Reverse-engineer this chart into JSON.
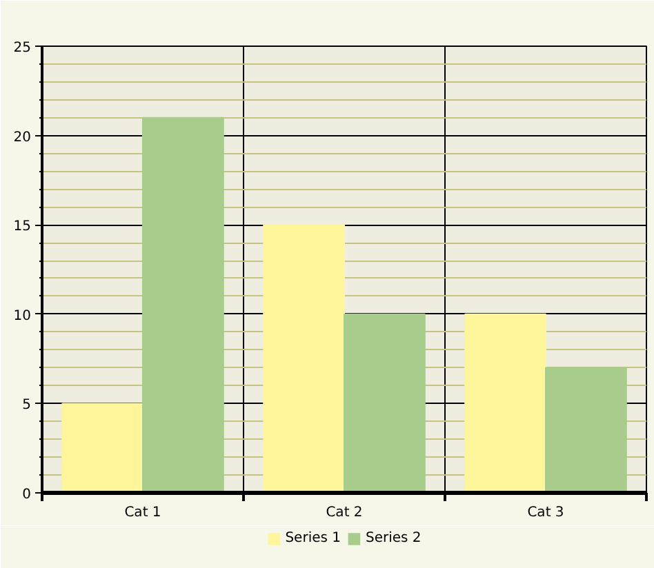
{
  "chart_data": {
    "type": "bar",
    "categories": [
      "Cat 1",
      "Cat 2",
      "Cat 3"
    ],
    "series": [
      {
        "name": "Series 1",
        "color": "#fff69b",
        "values": [
          5,
          15,
          10
        ]
      },
      {
        "name": "Series 2",
        "color": "#a8cc8c",
        "values": [
          21,
          10,
          7
        ]
      }
    ],
    "ylim": [
      0,
      25
    ],
    "yticks": [
      0,
      {
        "value": 1,
        "label": null
      },
      {
        "value": 2,
        "label": null
      },
      {
        "value": 3,
        "label": null
      },
      {
        "value": 4,
        "label": null
      },
      5,
      {
        "value": 6,
        "label": null
      },
      {
        "value": 7,
        "label": null
      },
      {
        "value": 8,
        "label": null
      },
      {
        "value": 9,
        "label": null
      },
      10,
      {
        "value": 11,
        "label": null
      },
      {
        "value": 12,
        "label": null
      },
      {
        "value": 13,
        "label": null
      },
      {
        "value": 14,
        "label": null
      },
      15,
      {
        "value": 16,
        "label": null
      },
      {
        "value": 17,
        "label": null
      },
      {
        "value": 18,
        "label": null
      },
      {
        "value": 19,
        "label": null
      },
      20,
      {
        "value": 21,
        "label": null
      },
      {
        "value": 22,
        "label": null
      },
      {
        "value": 23,
        "label": null
      },
      {
        "value": 24,
        "label": null
      },
      25
    ],
    "grid": true,
    "legend": "bottom"
  }
}
